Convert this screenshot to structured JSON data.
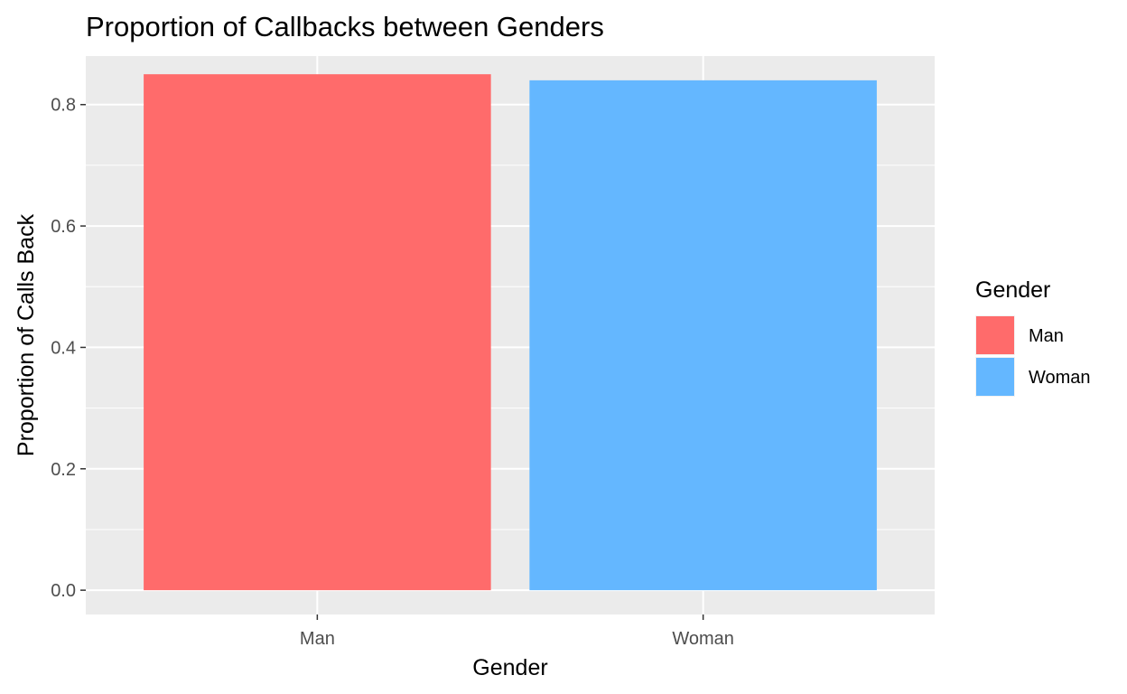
{
  "chart_data": {
    "type": "bar",
    "title": "Proportion of Callbacks between Genders",
    "xlabel": "Gender",
    "ylabel": "Proportion of Calls Back",
    "categories": [
      "Man",
      "Woman"
    ],
    "values": [
      0.85,
      0.84
    ],
    "colors": [
      "#ff6b6b",
      "#64b7ff"
    ],
    "ylim": [
      -0.04,
      0.88
    ],
    "yticks": [
      0.0,
      0.2,
      0.4,
      0.6,
      0.8
    ],
    "ytick_labels": [
      "0.0",
      "0.2",
      "0.4",
      "0.6",
      "0.8"
    ],
    "grid": true,
    "panel_background": "#ebebeb",
    "legend": {
      "title": "Gender",
      "position": "right",
      "entries": [
        "Man",
        "Woman"
      ]
    }
  }
}
